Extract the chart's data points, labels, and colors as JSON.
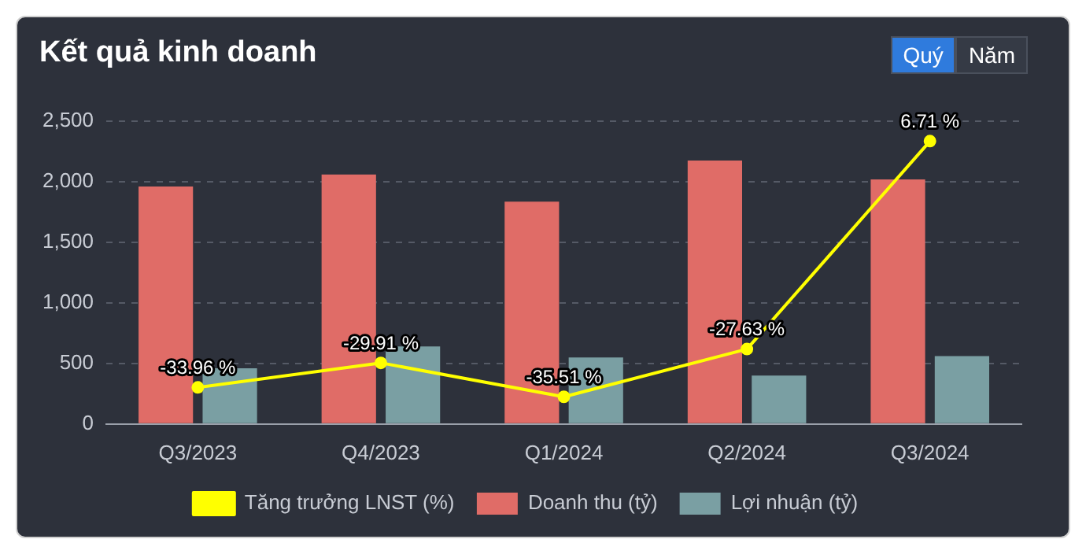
{
  "chart_data": {
    "type": "bar",
    "title": "Kết quả kinh doanh",
    "annotations": [
      "Quý",
      "Năm"
    ],
    "categories": [
      "Q3/2023",
      "Q4/2023",
      "Q1/2024",
      "Q2/2024",
      "Q3/2024"
    ],
    "series": [
      {
        "name": "Doanh thu (tỷ)",
        "color": "#e06c67",
        "values": [
          1960,
          2060,
          1835,
          2175,
          2020
        ]
      },
      {
        "name": "Lợi nhuận (tỷ)",
        "color": "#7a9fa3",
        "values": [
          460,
          640,
          550,
          400,
          560
        ]
      },
      {
        "name": "Tăng trưởng LNST (%)",
        "type": "line",
        "axis": "y2",
        "color": "#ffff00",
        "values": [
          -33.96,
          -29.91,
          -35.51,
          -27.63,
          6.71
        ],
        "value_labels": [
          "-33.96 %",
          "-29.91 %",
          "-35.51 %",
          "-27.63 %",
          "6.71 %"
        ]
      }
    ],
    "ylim": [
      0,
      2500
    ],
    "yticks": [
      0,
      500,
      {
        "value": 1000,
        "label": "1,000"
      },
      {
        "value": 1500,
        "label": "1,500"
      },
      {
        "value": 2000,
        "label": "2,000"
      },
      {
        "value": 2500,
        "label": "2,500"
      }
    ],
    "y2lim": [
      -40,
      10
    ],
    "grid": "y",
    "legend": "bottom",
    "marker": "circle",
    "line_style": "solid"
  }
}
